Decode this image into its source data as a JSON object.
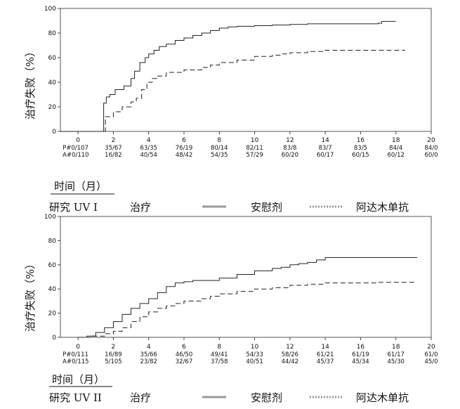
{
  "chart_data": [
    {
      "type": "line",
      "panel": "top",
      "ylabel": "治疗失败（%）",
      "xlabel": "时间（月）",
      "ylim": [
        0,
        100
      ],
      "xlim": [
        -1,
        20
      ],
      "yticks": [
        0,
        20,
        40,
        60,
        80,
        100
      ],
      "xticks": [
        0,
        2,
        4,
        6,
        8,
        10,
        12,
        14,
        16,
        18,
        20
      ],
      "risk_table": {
        "row_labels": [
          "P#",
          "A#"
        ],
        "placebo": [
          "0/107",
          "35/67",
          "63/35",
          "76/19",
          "80/14",
          "82/11",
          "83/8",
          "83/7",
          "83/5",
          "84/4",
          "84/0"
        ],
        "adalimumab": [
          "0/110",
          "16/82",
          "40/54",
          "48/42",
          "54/35",
          "57/29",
          "60/20",
          "60/17",
          "60/15",
          "60/12",
          "60/0"
        ]
      },
      "series": [
        {
          "style": "solid",
          "points": [
            [
              -1,
              0
            ],
            [
              0,
              0
            ],
            [
              1,
              0
            ],
            [
              1.4,
              0
            ],
            [
              1.45,
              23
            ],
            [
              1.6,
              28
            ],
            [
              1.8,
              30
            ],
            [
              2.1,
              34
            ],
            [
              2.6,
              37
            ],
            [
              3,
              43
            ],
            [
              3.2,
              49
            ],
            [
              3.5,
              56
            ],
            [
              3.8,
              60
            ],
            [
              4,
              63
            ],
            [
              4.3,
              66
            ],
            [
              4.6,
              69
            ],
            [
              5,
              71
            ],
            [
              5.5,
              74
            ],
            [
              6,
              76
            ],
            [
              6.5,
              78
            ],
            [
              7,
              80
            ],
            [
              7.5,
              82
            ],
            [
              8,
              84
            ],
            [
              8.5,
              85
            ],
            [
              9,
              85.5
            ],
            [
              10,
              86
            ],
            [
              11,
              86.5
            ],
            [
              12,
              87
            ],
            [
              13,
              87.5
            ],
            [
              15,
              87.5
            ],
            [
              17,
              88
            ],
            [
              17.2,
              89.5
            ],
            [
              18,
              89.5
            ]
          ]
        },
        {
          "style": "dashed",
          "points": [
            [
              1.5,
              0
            ],
            [
              1.55,
              12
            ],
            [
              2,
              16
            ],
            [
              2.5,
              20
            ],
            [
              3,
              24
            ],
            [
              3.3,
              27
            ],
            [
              3.6,
              34
            ],
            [
              3.9,
              40
            ],
            [
              4.2,
              43
            ],
            [
              4.5,
              45
            ],
            [
              5,
              48
            ],
            [
              6,
              50
            ],
            [
              7,
              52
            ],
            [
              7.5,
              54
            ],
            [
              8,
              56
            ],
            [
              9,
              58
            ],
            [
              10,
              61
            ],
            [
              11,
              62
            ],
            [
              11.5,
              63
            ],
            [
              12,
              64
            ],
            [
              13,
              65
            ],
            [
              14,
              66
            ],
            [
              16,
              66
            ],
            [
              18.5,
              66.5
            ]
          ]
        }
      ]
    },
    {
      "type": "line",
      "panel": "bottom",
      "ylabel": "治疗失败（%）",
      "xlabel": "时间（月）",
      "ylim": [
        0,
        100
      ],
      "xlim": [
        -1,
        20
      ],
      "yticks": [
        0,
        20,
        40,
        60,
        80,
        100
      ],
      "xticks": [
        0,
        2,
        4,
        6,
        8,
        10,
        12,
        14,
        16,
        18,
        20
      ],
      "risk_table": {
        "row_labels": [
          "P#",
          "A#"
        ],
        "placebo": [
          "0/111",
          "16/89",
          "35/66",
          "46/50",
          "49/41",
          "54/33",
          "58/26",
          "61/21",
          "61/19",
          "61/17",
          "61/0"
        ],
        "adalimumab": [
          "0/115",
          "5/105",
          "23/82",
          "32/67",
          "37/58",
          "40/51",
          "44/42",
          "45/37",
          "45/34",
          "45/30",
          "45/0"
        ]
      },
      "series": [
        {
          "style": "solid",
          "points": [
            [
              0,
              0
            ],
            [
              0.5,
              1
            ],
            [
              1,
              4
            ],
            [
              1.5,
              8
            ],
            [
              2,
              13
            ],
            [
              2.5,
              19
            ],
            [
              3,
              24
            ],
            [
              3.5,
              28
            ],
            [
              4,
              32
            ],
            [
              4.5,
              37
            ],
            [
              5,
              42
            ],
            [
              5.5,
              45
            ],
            [
              6,
              46
            ],
            [
              6.5,
              47
            ],
            [
              7,
              47
            ],
            [
              8,
              49
            ],
            [
              9,
              52
            ],
            [
              10,
              55
            ],
            [
              11,
              57
            ],
            [
              11.5,
              58
            ],
            [
              12,
              60
            ],
            [
              12.5,
              61
            ],
            [
              13,
              62
            ],
            [
              13.5,
              64
            ],
            [
              14,
              66
            ],
            [
              15,
              66
            ],
            [
              16,
              66
            ],
            [
              17,
              66
            ],
            [
              19.2,
              66
            ]
          ]
        },
        {
          "style": "dashed",
          "points": [
            [
              0,
              0
            ],
            [
              0.8,
              1
            ],
            [
              1.5,
              3
            ],
            [
              2,
              5
            ],
            [
              2.5,
              8
            ],
            [
              3,
              13
            ],
            [
              3.5,
              17
            ],
            [
              4,
              21
            ],
            [
              4.5,
              24
            ],
            [
              5,
              26
            ],
            [
              5.5,
              28
            ],
            [
              6,
              30
            ],
            [
              7,
              32
            ],
            [
              7.5,
              34
            ],
            [
              8,
              36
            ],
            [
              9,
              38
            ],
            [
              10,
              40
            ],
            [
              11,
              41
            ],
            [
              12,
              43
            ],
            [
              13,
              44
            ],
            [
              14,
              45
            ],
            [
              15,
              45
            ],
            [
              17,
              45.5
            ],
            [
              19,
              46
            ]
          ]
        }
      ]
    }
  ],
  "legend": [
    {
      "study": "研究 UV I",
      "treatment_label": "治疗",
      "placebo_label": "安慰剂",
      "adalimumab_label": "阿达木单抗"
    },
    {
      "study": "研究 UV II",
      "treatment_label": "治疗",
      "placebo_label": "安慰剂",
      "adalimumab_label": "阿达木单抗"
    }
  ]
}
